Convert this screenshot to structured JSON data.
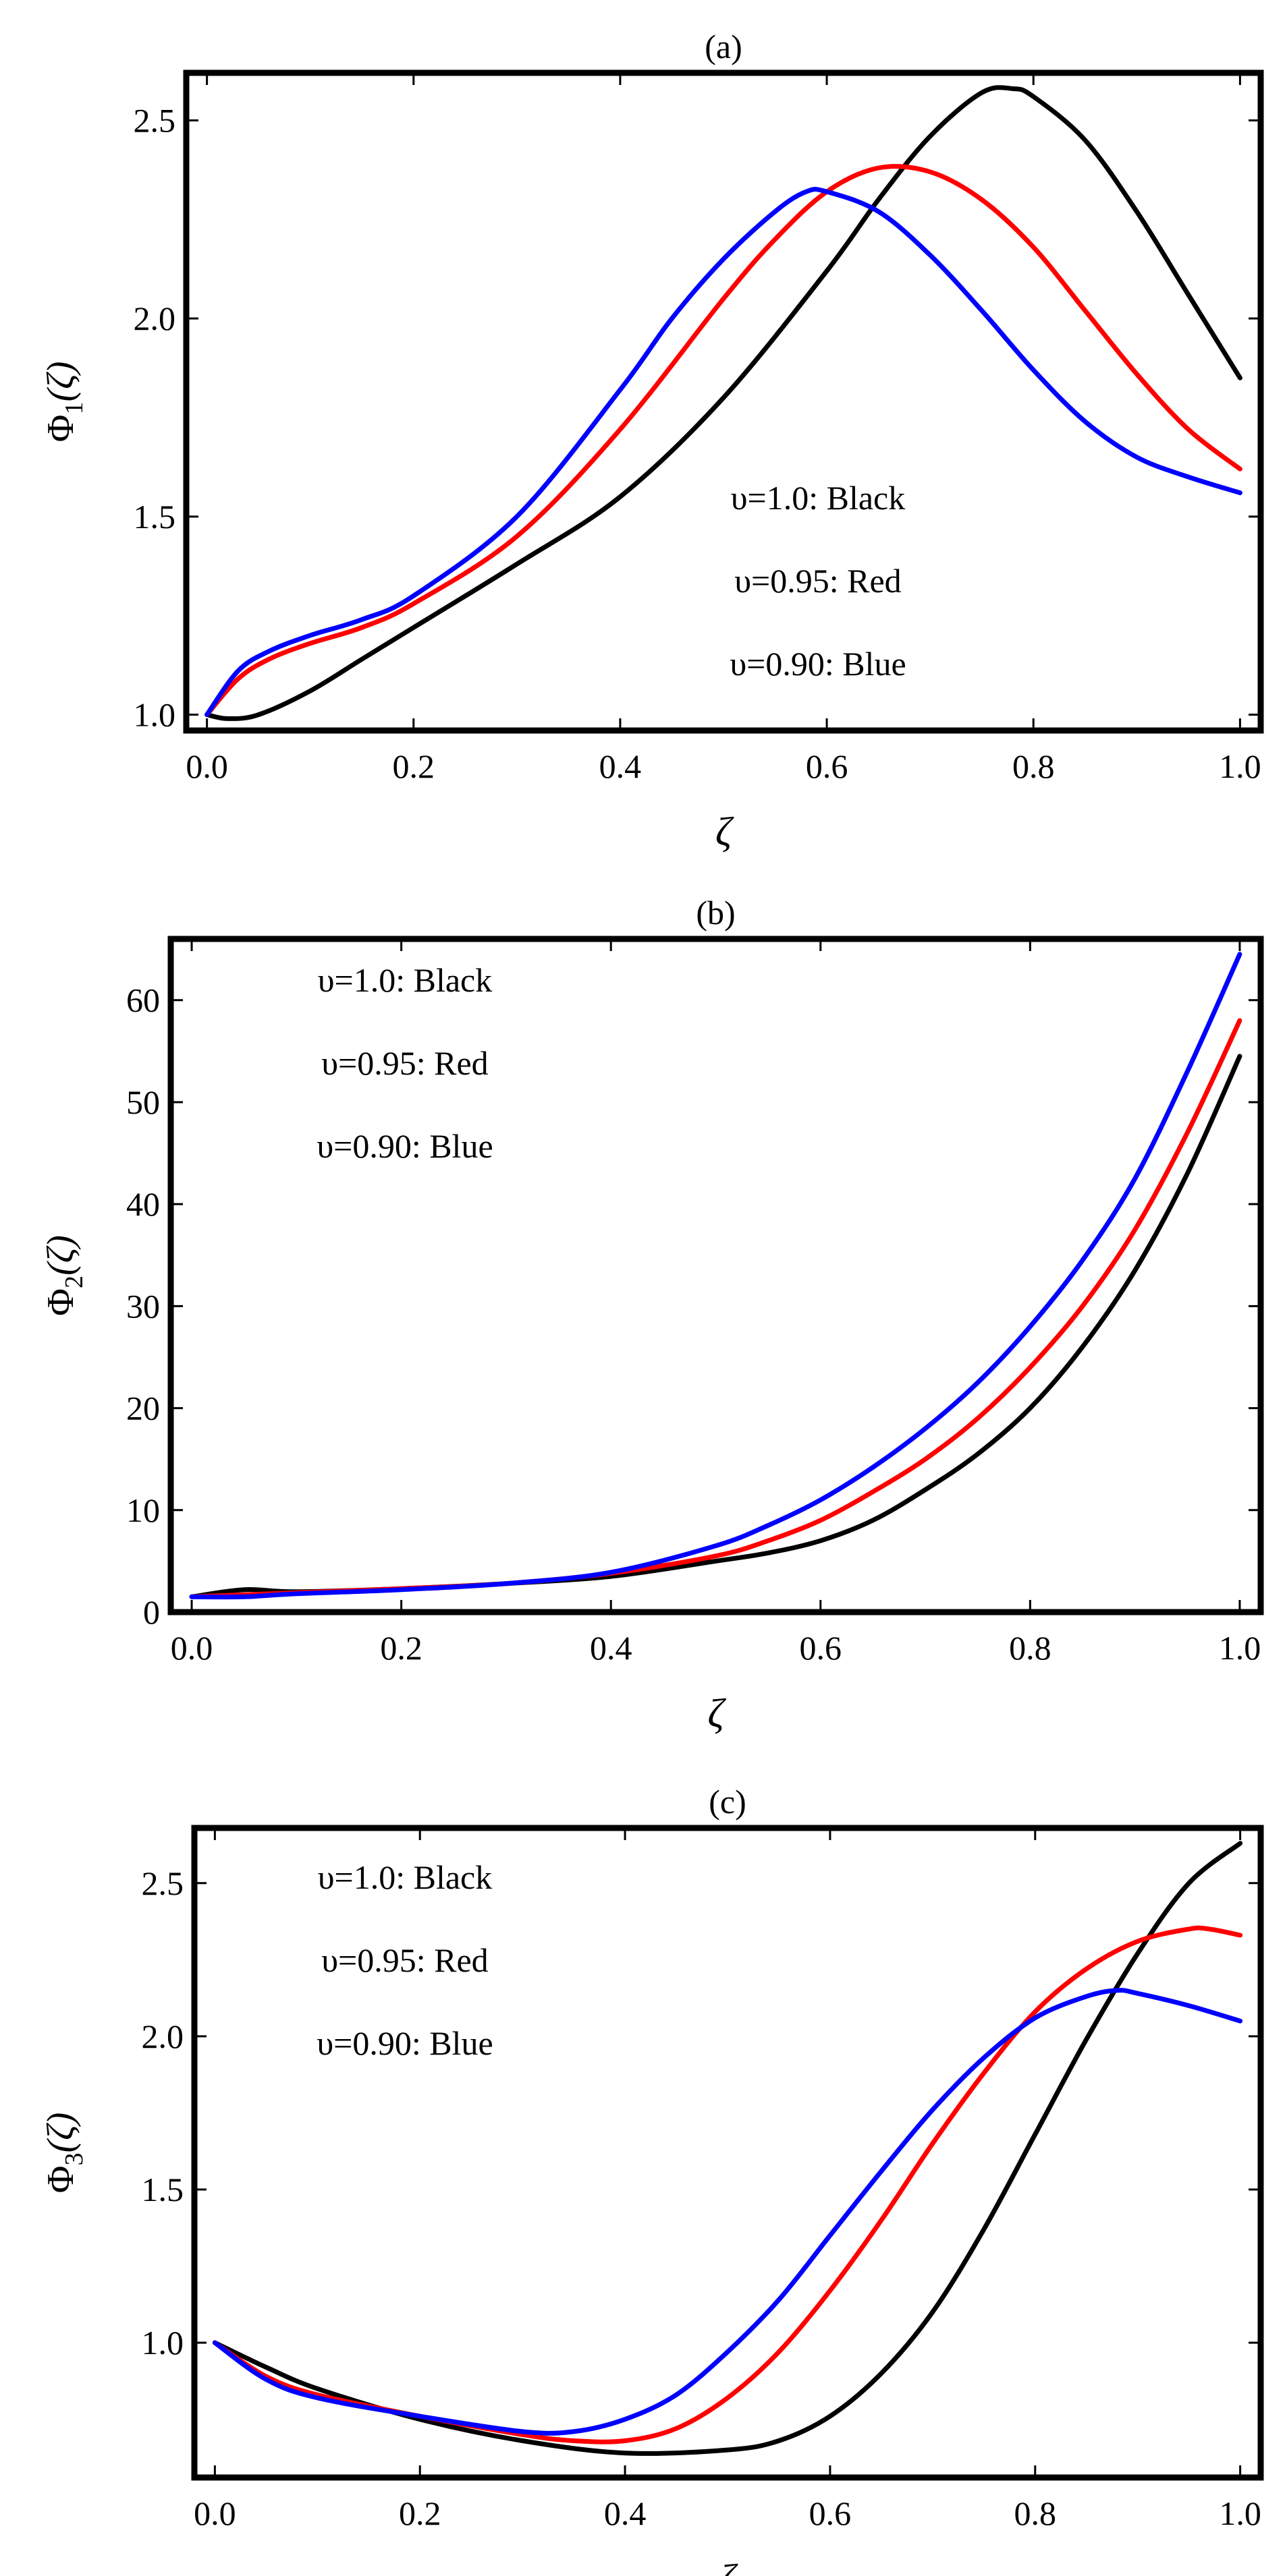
{
  "chart_data": [
    {
      "type": "line",
      "title": "(a)",
      "xlabel": "ζ",
      "ylabel": {
        "symbol": "Φ",
        "subscript": "1",
        "arg": "(ζ)"
      },
      "xlim": [
        -0.02,
        1.02
      ],
      "ylim": [
        0.96,
        2.62
      ],
      "xticks": [
        0.0,
        0.2,
        0.4,
        0.6,
        0.8,
        1.0
      ],
      "xtick_labels": [
        "0.0",
        "0.2",
        "0.4",
        "0.6",
        "0.8",
        "1.0"
      ],
      "yticks": [
        1.0,
        1.5,
        2.0,
        2.5
      ],
      "ytick_labels": [
        "1.0",
        "1.5",
        "2.0",
        "2.5"
      ],
      "legend": [
        "υ=1.0: Black",
        "υ=0.95: Red",
        "υ=0.90: Blue"
      ],
      "legend_position": "bottom-right",
      "series": [
        {
          "name": "υ=1.0",
          "color": "#000000",
          "x": [
            0,
            0.02,
            0.05,
            0.1,
            0.15,
            0.2,
            0.3,
            0.4,
            0.5,
            0.6,
            0.65,
            0.7,
            0.75,
            0.78,
            0.8,
            0.85,
            0.9,
            0.95,
            1.0
          ],
          "y": [
            1.0,
            0.99,
            1.0,
            1.06,
            1.14,
            1.22,
            1.38,
            1.55,
            1.8,
            2.12,
            2.3,
            2.46,
            2.57,
            2.58,
            2.56,
            2.45,
            2.27,
            2.06,
            1.85
          ]
        },
        {
          "name": "υ=0.95",
          "color": "#ff0000",
          "x": [
            0,
            0.03,
            0.06,
            0.1,
            0.15,
            0.2,
            0.3,
            0.4,
            0.5,
            0.55,
            0.6,
            0.65,
            0.7,
            0.75,
            0.8,
            0.85,
            0.9,
            0.95,
            1.0
          ],
          "y": [
            1.0,
            1.09,
            1.14,
            1.18,
            1.22,
            1.28,
            1.45,
            1.72,
            2.05,
            2.2,
            2.32,
            2.38,
            2.37,
            2.3,
            2.18,
            2.02,
            1.86,
            1.72,
            1.62
          ]
        },
        {
          "name": "υ=0.90",
          "color": "#0000ff",
          "x": [
            0,
            0.03,
            0.06,
            0.1,
            0.15,
            0.2,
            0.3,
            0.4,
            0.45,
            0.5,
            0.55,
            0.58,
            0.6,
            0.65,
            0.7,
            0.75,
            0.8,
            0.85,
            0.9,
            0.95,
            1.0
          ],
          "y": [
            1.0,
            1.11,
            1.16,
            1.2,
            1.24,
            1.3,
            1.5,
            1.82,
            2.0,
            2.15,
            2.27,
            2.32,
            2.32,
            2.27,
            2.16,
            2.02,
            1.87,
            1.74,
            1.65,
            1.6,
            1.56
          ]
        }
      ]
    },
    {
      "type": "line",
      "title": "(b)",
      "xlabel": "ζ",
      "ylabel": {
        "symbol": "Φ",
        "subscript": "2",
        "arg": "(ζ)"
      },
      "xlim": [
        -0.02,
        1.02
      ],
      "ylim": [
        0,
        66
      ],
      "xticks": [
        0.0,
        0.2,
        0.4,
        0.6,
        0.8,
        1.0
      ],
      "xtick_labels": [
        "0.0",
        "0.2",
        "0.4",
        "0.6",
        "0.8",
        "1.0"
      ],
      "yticks": [
        0,
        10,
        20,
        30,
        40,
        50,
        60
      ],
      "ytick_labels": [
        "0",
        "10",
        "20",
        "30",
        "40",
        "50",
        "60"
      ],
      "legend": [
        "υ=1.0: Black",
        "υ=0.95: Red",
        "υ=0.90: Blue"
      ],
      "legend_position": "top-left",
      "series": [
        {
          "name": "υ=1.0",
          "color": "#000000",
          "x": [
            0,
            0.05,
            0.1,
            0.2,
            0.3,
            0.4,
            0.5,
            0.55,
            0.6,
            0.65,
            0.7,
            0.75,
            0.8,
            0.85,
            0.9,
            0.95,
            1.0
          ],
          "y": [
            1.5,
            2.2,
            2.0,
            2.3,
            2.8,
            3.5,
            5.0,
            5.8,
            7.0,
            9.0,
            12.0,
            15.5,
            20.0,
            26.0,
            33.5,
            43.0,
            54.5
          ]
        },
        {
          "name": "υ=0.95",
          "color": "#ff0000",
          "x": [
            0,
            0.05,
            0.1,
            0.2,
            0.3,
            0.4,
            0.5,
            0.55,
            0.6,
            0.65,
            0.7,
            0.75,
            0.8,
            0.85,
            0.9,
            0.95,
            1.0
          ],
          "y": [
            1.5,
            1.7,
            1.9,
            2.3,
            2.8,
            3.8,
            5.5,
            7.0,
            9.0,
            11.8,
            15.0,
            19.0,
            24.0,
            30.0,
            37.5,
            47.0,
            58.0
          ]
        },
        {
          "name": "υ=0.90",
          "color": "#0000ff",
          "x": [
            0,
            0.05,
            0.1,
            0.2,
            0.3,
            0.4,
            0.5,
            0.55,
            0.6,
            0.65,
            0.7,
            0.75,
            0.8,
            0.85,
            0.9,
            0.95,
            1.0
          ],
          "y": [
            1.5,
            1.5,
            1.8,
            2.2,
            2.8,
            3.9,
            6.5,
            8.5,
            11.0,
            14.2,
            18.0,
            22.5,
            28.0,
            34.5,
            42.5,
            53.0,
            64.5
          ]
        }
      ]
    },
    {
      "type": "line",
      "title": "(c)",
      "xlabel": "ζ",
      "ylabel": {
        "symbol": "Φ",
        "subscript": "3",
        "arg": "(ζ)"
      },
      "xlim": [
        -0.02,
        1.02
      ],
      "ylim": [
        0.56,
        2.68
      ],
      "xticks": [
        0.0,
        0.2,
        0.4,
        0.6,
        0.8,
        1.0
      ],
      "xtick_labels": [
        "0.0",
        "0.2",
        "0.4",
        "0.6",
        "0.8",
        "1.0"
      ],
      "yticks": [
        1.0,
        1.5,
        2.0,
        2.5
      ],
      "ytick_labels": [
        "1.0",
        "1.5",
        "2.0",
        "2.5"
      ],
      "legend": [
        "υ=1.0:  Black",
        "υ=0.95: Red",
        "υ=0.90: Blue"
      ],
      "legend_position": "top-left",
      "series": [
        {
          "name": "υ=1.0",
          "color": "#000000",
          "x": [
            0,
            0.05,
            0.1,
            0.2,
            0.3,
            0.4,
            0.5,
            0.55,
            0.6,
            0.65,
            0.7,
            0.75,
            0.8,
            0.85,
            0.9,
            0.95,
            1.0
          ],
          "y": [
            1.0,
            0.92,
            0.85,
            0.75,
            0.68,
            0.64,
            0.65,
            0.68,
            0.76,
            0.9,
            1.1,
            1.37,
            1.68,
            1.99,
            2.27,
            2.5,
            2.63
          ]
        },
        {
          "name": "υ=0.95",
          "color": "#ff0000",
          "x": [
            0,
            0.05,
            0.1,
            0.2,
            0.3,
            0.35,
            0.4,
            0.45,
            0.5,
            0.55,
            0.6,
            0.65,
            0.7,
            0.75,
            0.8,
            0.85,
            0.9,
            0.95,
            0.97,
            1.0
          ],
          "y": [
            1.0,
            0.89,
            0.83,
            0.76,
            0.7,
            0.68,
            0.68,
            0.72,
            0.82,
            0.97,
            1.17,
            1.4,
            1.65,
            1.88,
            2.08,
            2.22,
            2.31,
            2.35,
            2.35,
            2.33
          ]
        },
        {
          "name": "υ=0.90",
          "color": "#0000ff",
          "x": [
            0,
            0.05,
            0.1,
            0.2,
            0.3,
            0.35,
            0.4,
            0.45,
            0.5,
            0.55,
            0.6,
            0.65,
            0.7,
            0.75,
            0.8,
            0.85,
            0.88,
            0.9,
            0.95,
            1.0
          ],
          "y": [
            1.0,
            0.88,
            0.82,
            0.76,
            0.71,
            0.71,
            0.75,
            0.83,
            0.97,
            1.14,
            1.35,
            1.56,
            1.76,
            1.93,
            2.06,
            2.13,
            2.15,
            2.14,
            2.1,
            2.05
          ]
        }
      ]
    }
  ]
}
